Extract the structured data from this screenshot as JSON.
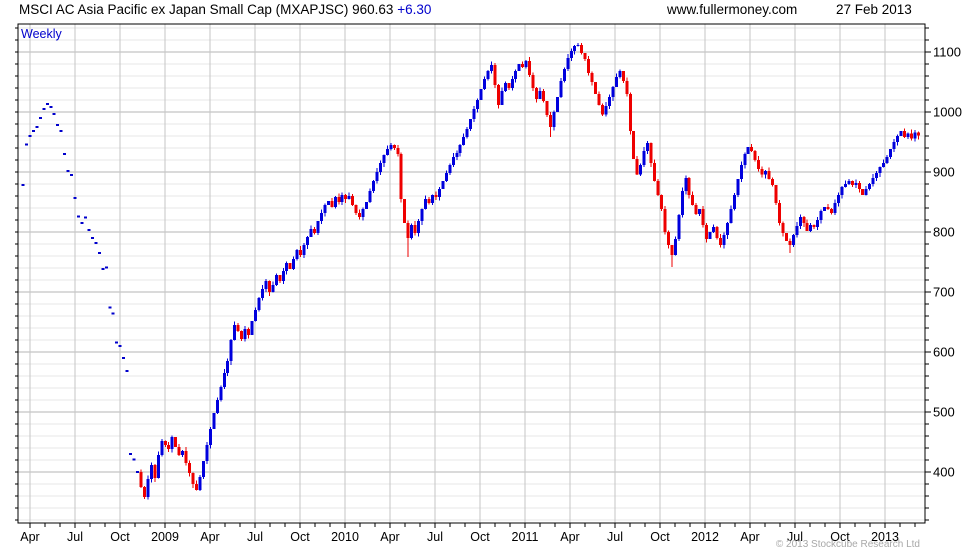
{
  "header": {
    "title_main": "MSCI AC Asia Pacific ex Japan Small Cap (MXAPJSC)",
    "title_value": "960.63",
    "title_change": "+6.30",
    "website": "www.fullermoney.com",
    "date": "27 Feb 2013"
  },
  "chart": {
    "frequency_label": "Weekly",
    "copyright": "© 2013 Stockcube Research Ltd"
  },
  "colors": {
    "up_candle": "#0000dd",
    "down_candle": "#ee0000",
    "dot": "#0000cc",
    "accent_text": "#0000cc",
    "grid_minor": "#e7e7e7",
    "grid_major": "#b4b4b4",
    "grid_vertical": "#c6c6c6",
    "frame": "#000000",
    "tick_label": "#000000"
  },
  "chart_data": {
    "type": "candlestick",
    "period": "weekly",
    "title": "MSCI AC Asia Pacific ex Japan Small Cap (MXAPJSC)",
    "last_close": 960.63,
    "change": 6.3,
    "date": "27 Feb 2013",
    "x_tick_labels": [
      "Apr",
      "Jul",
      "Oct",
      "2009",
      "Apr",
      "Jul",
      "Oct",
      "2010",
      "Apr",
      "Jul",
      "Oct",
      "2011",
      "Apr",
      "Jul",
      "Oct",
      "2012",
      "Apr",
      "Jul",
      "Oct",
      "2013"
    ],
    "y_tick_values": [
      400,
      500,
      600,
      700,
      800,
      900,
      1000,
      1100
    ],
    "y_minor_step": 20,
    "ylim": [
      315,
      1147
    ],
    "grid": true,
    "legend": "none",
    "dot_points": 34,
    "closes": [
      878,
      946,
      960,
      968,
      975,
      990,
      1005,
      1013,
      1008,
      997,
      978,
      968,
      930,
      902,
      895,
      857,
      826,
      815,
      824,
      803,
      790,
      782,
      765,
      738,
      741,
      674,
      664,
      616,
      610,
      590,
      568,
      430,
      421,
      400,
      375,
      358,
      388,
      412,
      390,
      428,
      452,
      445,
      438,
      458,
      442,
      428,
      435,
      415,
      398,
      380,
      370,
      392,
      418,
      445,
      472,
      498,
      520,
      542,
      565,
      585,
      620,
      645,
      635,
      622,
      638,
      628,
      652,
      670,
      690,
      705,
      718,
      700,
      712,
      728,
      718,
      735,
      748,
      738,
      755,
      770,
      762,
      778,
      792,
      805,
      798,
      818,
      832,
      845,
      852,
      842,
      858,
      850,
      862,
      855,
      860,
      845,
      832,
      825,
      838,
      850,
      868,
      885,
      900,
      915,
      928,
      938,
      945,
      940,
      930,
      855,
      815,
      790,
      812,
      798,
      818,
      838,
      855,
      848,
      862,
      858,
      872,
      885,
      898,
      912,
      925,
      932,
      945,
      958,
      972,
      988,
      1005,
      1020,
      1038,
      1055,
      1068,
      1078,
      1045,
      1012,
      1035,
      1048,
      1040,
      1055,
      1068,
      1080,
      1075,
      1085,
      1062,
      1040,
      1022,
      1035,
      1018,
      995,
      975,
      1000,
      1025,
      1052,
      1072,
      1090,
      1102,
      1110,
      1112,
      1098,
      1088,
      1065,
      1050,
      1030,
      1012,
      996,
      1010,
      1025,
      1042,
      1058,
      1068,
      1052,
      1030,
      968,
      922,
      896,
      912,
      935,
      948,
      915,
      885,
      862,
      838,
      800,
      778,
      762,
      788,
      828,
      868,
      890,
      862,
      845,
      830,
      838,
      812,
      788,
      800,
      808,
      790,
      778,
      795,
      815,
      838,
      862,
      888,
      912,
      930,
      942,
      935,
      920,
      905,
      896,
      902,
      888,
      878,
      848,
      815,
      798,
      785,
      778,
      795,
      810,
      825,
      815,
      802,
      812,
      808,
      820,
      835,
      842,
      838,
      832,
      848,
      862,
      875,
      880,
      885,
      878,
      882,
      872,
      862,
      872,
      880,
      890,
      898,
      908,
      915,
      925,
      938,
      950,
      960,
      968,
      958,
      964,
      956,
      966,
      960.63
    ],
    "wick_low_overrides": {
      "111": 758,
      "152": 958,
      "187": 742,
      "221": 765
    },
    "wick_high_overrides": {
      "160": 1115
    }
  }
}
